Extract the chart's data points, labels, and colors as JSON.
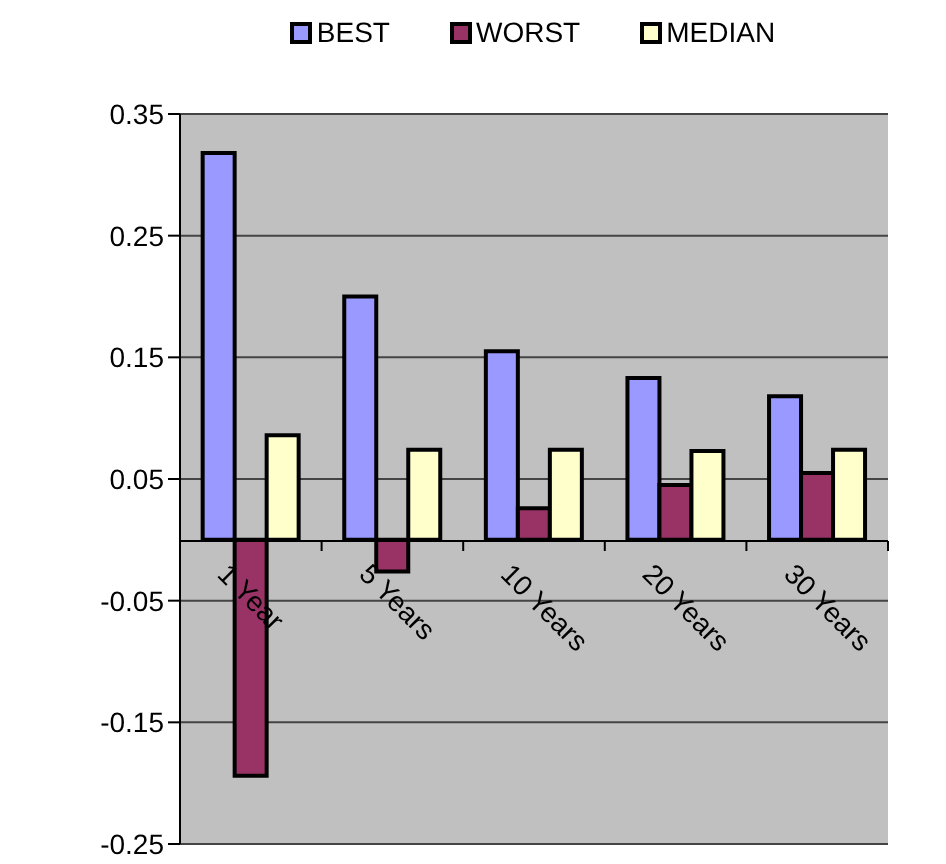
{
  "chart_data": {
    "type": "bar",
    "categories": [
      "1 Year",
      "5 Years",
      "10 Years",
      "20 Years",
      "30 Years"
    ],
    "series": [
      {
        "name": "BEST",
        "color": "#9999ff",
        "values": [
          0.318,
          0.2,
          0.155,
          0.133,
          0.118
        ]
      },
      {
        "name": "WORST",
        "color": "#993366",
        "values": [
          -0.194,
          -0.026,
          0.026,
          0.045,
          0.055
        ]
      },
      {
        "name": "MEDIAN",
        "color": "#ffffcc",
        "values": [
          0.086,
          0.074,
          0.074,
          0.073,
          0.074
        ]
      }
    ],
    "ylim": [
      -0.25,
      0.35
    ],
    "yticks": [
      -0.25,
      -0.15,
      -0.05,
      0.05,
      0.15,
      0.25,
      0.35
    ],
    "grid": "y",
    "legend": "top"
  }
}
